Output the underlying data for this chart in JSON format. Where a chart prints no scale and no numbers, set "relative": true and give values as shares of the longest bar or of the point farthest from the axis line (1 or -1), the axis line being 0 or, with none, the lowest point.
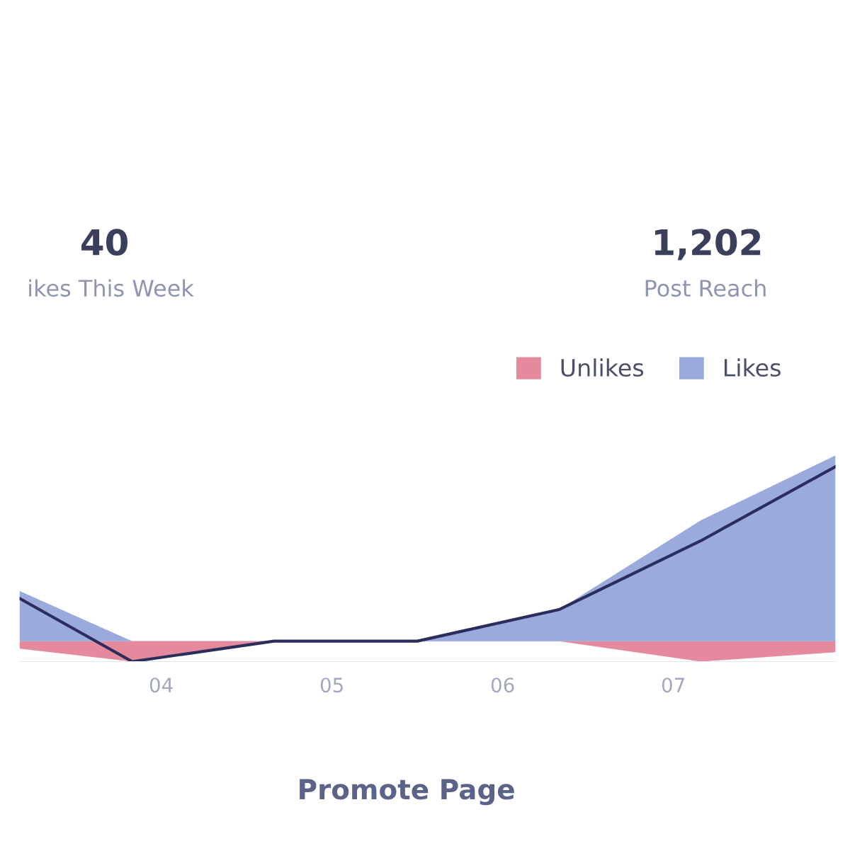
{
  "chart_data": {
    "type": "area",
    "relative": true,
    "legend": "top right",
    "x": [
      3.17,
      3.83,
      4.66,
      5.5,
      6.33,
      7.16,
      7.95
    ],
    "xlim": [
      3.17,
      7.95
    ],
    "xticks": [
      {
        "value": 4,
        "label": "04"
      },
      {
        "value": 5,
        "label": "05"
      },
      {
        "value": 6,
        "label": "06"
      },
      {
        "value": 7,
        "label": "07"
      }
    ],
    "tick_labels": "x",
    "series": [
      {
        "name": "Unlikes",
        "color": "#e58a9c",
        "values": [
          -0.04,
          -0.11,
          0,
          0,
          0,
          -0.11,
          -0.06
        ]
      },
      {
        "name": "Likes",
        "color": "#9aaadd",
        "values": [
          0.27,
          0,
          0,
          0,
          0.17,
          0.65,
          1
        ]
      },
      {
        "type": "line",
        "color": "#2b2d5c",
        "values": [
          0.23,
          -0.11,
          0,
          0,
          0.17,
          0.54,
          0.94
        ]
      }
    ],
    "annotations": [
      "40",
      "ikes This Week",
      "1,202",
      "Post Reach",
      "Promote Page"
    ]
  }
}
